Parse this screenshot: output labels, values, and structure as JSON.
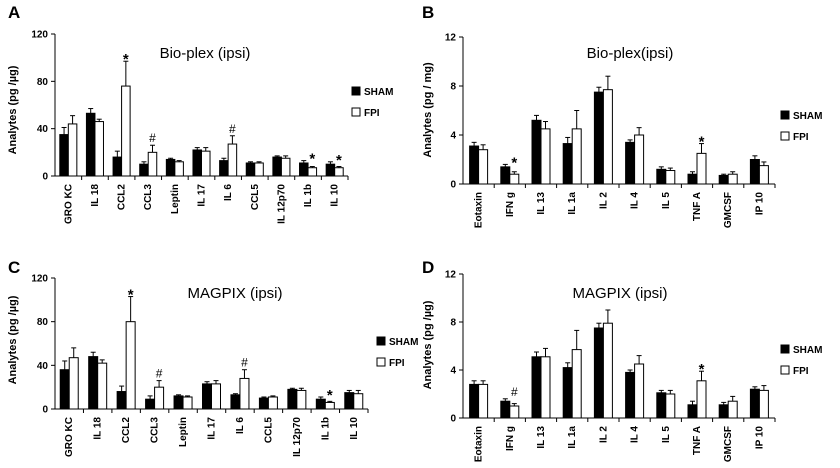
{
  "colors": {
    "sham": "#000000",
    "fpi": "#ffffff",
    "axis": "#000000"
  },
  "chart_data": [
    {
      "type": "bar",
      "panel": "A",
      "title": "Bio-plex (ipsi)",
      "ylabel": "Analytes (pg /µg)",
      "ylim": [
        0,
        120
      ],
      "yticks": [
        0,
        40,
        80,
        120
      ],
      "categories": [
        "GRO KC",
        "IL 18",
        "CCL2",
        "CCL3",
        "Leptin",
        "IL 17",
        "IL 6",
        "CCL5",
        "IL 12p70",
        "IL 1b",
        "IL 10"
      ],
      "series": [
        {
          "name": "SHAM",
          "values": [
            35,
            53,
            16,
            10,
            14,
            22,
            13,
            11,
            16,
            11,
            10
          ],
          "errors": [
            6,
            4,
            5,
            2,
            1,
            2,
            2,
            1,
            1,
            2,
            2
          ]
        },
        {
          "name": "FPI",
          "values": [
            44,
            46,
            76,
            20,
            12,
            21,
            27,
            11,
            15,
            7,
            7
          ],
          "errors": [
            7,
            2,
            21,
            6,
            1,
            3,
            7,
            1,
            2,
            1,
            1
          ]
        }
      ],
      "markers": [
        "",
        "",
        "*",
        "#",
        "",
        "",
        "#",
        "",
        "",
        "*",
        "*"
      ]
    },
    {
      "type": "bar",
      "panel": "B",
      "title": "Bio-plex(ipsi)",
      "ylabel": "Analytes (pg / mg)",
      "ylim": [
        0,
        12
      ],
      "yticks": [
        0,
        4,
        8,
        12
      ],
      "categories": [
        "Eotaxin",
        "IFN g",
        "IL 13",
        "IL 1a",
        "IL 2",
        "IL 4",
        "IL 5",
        "TNF A",
        "GMCSF",
        "IP 10"
      ],
      "series": [
        {
          "name": "SHAM",
          "values": [
            3.1,
            1.4,
            5.2,
            3.3,
            7.5,
            3.4,
            1.2,
            0.8,
            0.7,
            2.0
          ],
          "errors": [
            0.3,
            0.2,
            0.4,
            0.5,
            0.4,
            0.2,
            0.2,
            0.2,
            0.1,
            0.3
          ]
        },
        {
          "name": "FPI",
          "values": [
            2.8,
            0.8,
            4.5,
            4.5,
            7.7,
            4.0,
            1.1,
            2.5,
            0.8,
            1.5
          ],
          "errors": [
            0.4,
            0.2,
            0.6,
            1.5,
            1.1,
            0.6,
            0.2,
            0.8,
            0.2,
            0.3
          ]
        }
      ],
      "markers": [
        "",
        "*",
        "",
        "",
        "",
        "",
        "",
        "*",
        "",
        ""
      ]
    },
    {
      "type": "bar",
      "panel": "C",
      "title": "MAGPIX (ipsi)",
      "ylabel": "Analytes (pg /µg)",
      "ylim": [
        0,
        120
      ],
      "yticks": [
        0,
        40,
        80,
        120
      ],
      "categories": [
        "GRO KC",
        "IL 18",
        "CCL2",
        "CCL3",
        "Leptin",
        "IL 17",
        "IL 6",
        "CCL5",
        "IL 12p70",
        "IL 1b",
        "IL 10"
      ],
      "series": [
        {
          "name": "SHAM",
          "values": [
            36,
            48,
            16,
            9,
            12,
            23,
            13,
            10,
            18,
            9,
            15
          ],
          "errors": [
            8,
            4,
            5,
            3,
            1,
            2,
            1,
            1,
            1,
            2,
            2
          ]
        },
        {
          "name": "FPI",
          "values": [
            47,
            42,
            80,
            20,
            11,
            23,
            28,
            11,
            17,
            6,
            14
          ],
          "errors": [
            9,
            3,
            23,
            6,
            1,
            3,
            8,
            1,
            2,
            1,
            3
          ]
        }
      ],
      "markers": [
        "",
        "",
        "*",
        "#",
        "",
        "",
        "#",
        "",
        "",
        "*",
        ""
      ]
    },
    {
      "type": "bar",
      "panel": "D",
      "title": "MAGPIX (ipsi)",
      "ylabel": "Analytes (pg /µg)",
      "ylim": [
        0,
        12
      ],
      "yticks": [
        0,
        4,
        8,
        12
      ],
      "categories": [
        "Eotaxin",
        "IFN g",
        "IL 13",
        "IL 1a",
        "IL 2",
        "IL 4",
        "IL 5",
        "TNF A",
        "GMCSF",
        "IP 10"
      ],
      "series": [
        {
          "name": "SHAM",
          "values": [
            2.8,
            1.4,
            5.1,
            4.2,
            7.5,
            3.8,
            2.1,
            1.1,
            1.1,
            2.4
          ],
          "errors": [
            0.3,
            0.2,
            0.4,
            0.4,
            0.4,
            0.2,
            0.2,
            0.3,
            0.2,
            0.2
          ]
        },
        {
          "name": "FPI",
          "values": [
            2.8,
            1.0,
            5.1,
            5.7,
            7.9,
            4.5,
            2.0,
            3.1,
            1.4,
            2.3
          ],
          "errors": [
            0.3,
            0.2,
            0.7,
            1.6,
            1.1,
            0.7,
            0.3,
            0.8,
            0.4,
            0.4
          ]
        }
      ],
      "markers": [
        "",
        "#",
        "",
        "",
        "",
        "",
        "",
        "*",
        "",
        ""
      ]
    }
  ]
}
